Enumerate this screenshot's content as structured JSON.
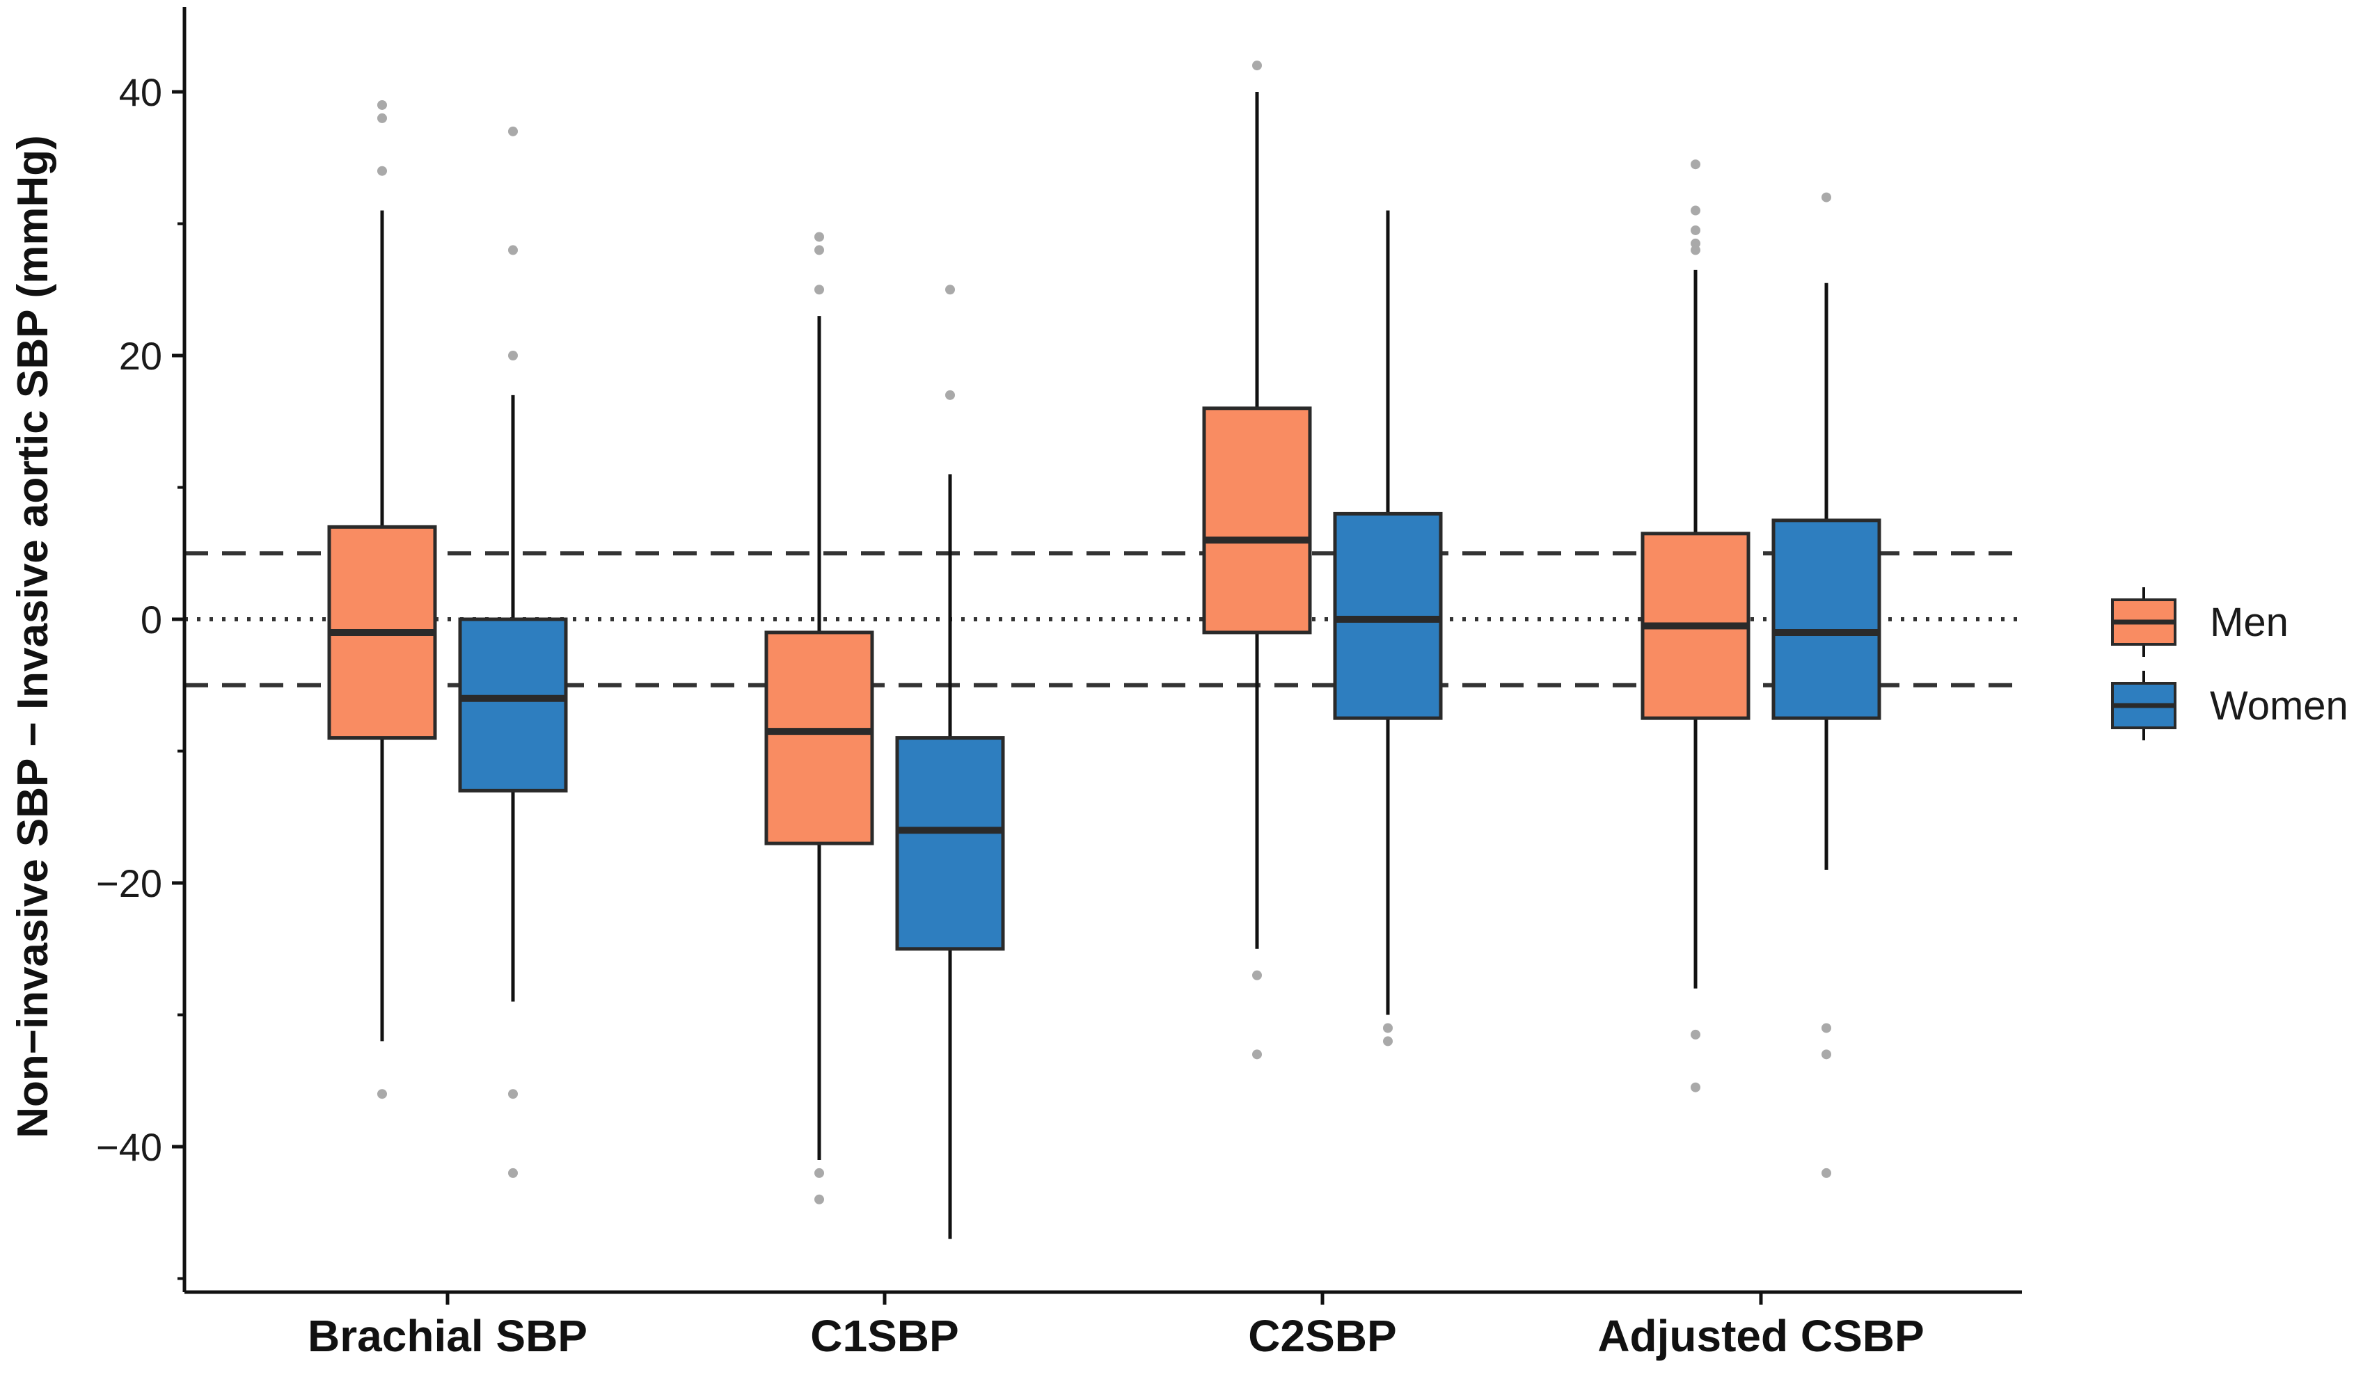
{
  "chart_data": {
    "type": "box",
    "title": "",
    "xlabel": "",
    "ylabel": "Non−invasive SBP − Invasive aortic SBP (mmHg)",
    "ylim": [
      -51,
      46
    ],
    "yticks": [
      40,
      20,
      0,
      -20,
      -40
    ],
    "ytick_labels": [
      "40",
      "20",
      "0",
      "−20",
      "−40"
    ],
    "grid": false,
    "legend_position": "right",
    "categories": [
      "Brachial SBP",
      "C1SBP",
      "C2SBP",
      "Adjusted CSBP"
    ],
    "reference_lines": [
      {
        "y": 5,
        "style": "dashed"
      },
      {
        "y": 0,
        "style": "dotted"
      },
      {
        "y": -5,
        "style": "dashed"
      }
    ],
    "series": [
      {
        "name": "Men",
        "color": "#F98C62",
        "boxes": [
          {
            "category": "Brachial SBP",
            "whisker_low": -32,
            "q1": -9,
            "median": -1,
            "q3": 7,
            "whisker_high": 31,
            "outliers": [
              39,
              38,
              34,
              -36
            ]
          },
          {
            "category": "C1SBP",
            "whisker_low": -41,
            "q1": -17,
            "median": -8.5,
            "q3": -1,
            "whisker_high": 23,
            "outliers": [
              29,
              28,
              25,
              -42,
              -44
            ]
          },
          {
            "category": "C2SBP",
            "whisker_low": -25,
            "q1": -1,
            "median": 6,
            "q3": 16,
            "whisker_high": 40,
            "outliers": [
              42,
              -27,
              -33
            ]
          },
          {
            "category": "Adjusted CSBP",
            "whisker_low": -28,
            "q1": -7.5,
            "median": -0.5,
            "q3": 6.5,
            "whisker_high": 26.5,
            "outliers": [
              34.5,
              31,
              29.5,
              28.5,
              28,
              -31.5,
              -35.5
            ]
          }
        ]
      },
      {
        "name": "Women",
        "color": "#2E7EBF",
        "boxes": [
          {
            "category": "Brachial SBP",
            "whisker_low": -29,
            "q1": -13,
            "median": -6,
            "q3": 0,
            "whisker_high": 17,
            "outliers": [
              37,
              28,
              20,
              -36,
              -42
            ]
          },
          {
            "category": "C1SBP",
            "whisker_low": -47,
            "q1": -25,
            "median": -16,
            "q3": -9,
            "whisker_high": 11,
            "outliers": [
              25,
              17
            ]
          },
          {
            "category": "C2SBP",
            "whisker_low": -30,
            "q1": -7.5,
            "median": 0,
            "q3": 8,
            "whisker_high": 31,
            "outliers": [
              -31,
              -32
            ]
          },
          {
            "category": "Adjusted CSBP",
            "whisker_low": -19,
            "q1": -7.5,
            "median": -1,
            "q3": 7.5,
            "whisker_high": 25.5,
            "outliers": [
              32,
              -31,
              -33,
              -42
            ]
          }
        ]
      }
    ]
  }
}
